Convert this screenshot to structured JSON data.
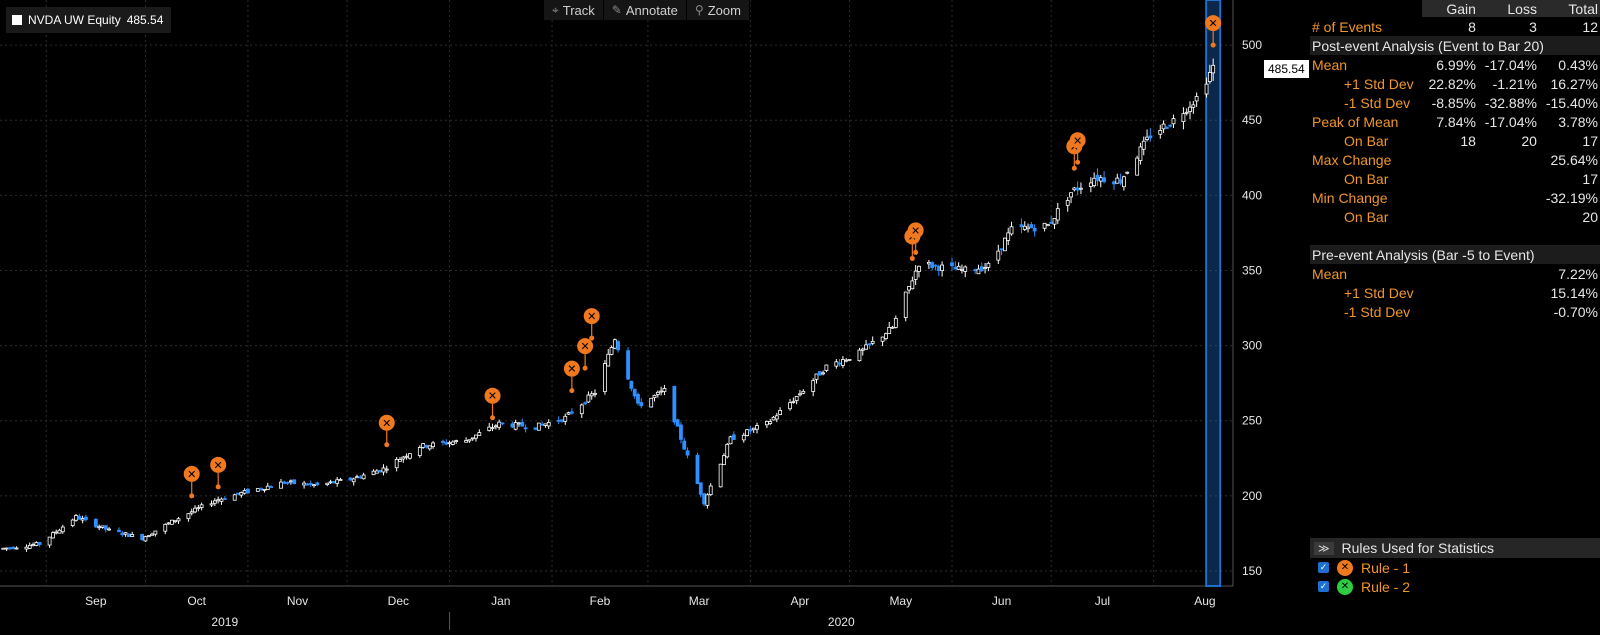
{
  "legend": {
    "label": "NVDA UW Equity",
    "value": "485.54"
  },
  "toolbar": {
    "track": "Track",
    "annotate": "Annotate",
    "zoom": "Zoom"
  },
  "last_price_tag": "485.54",
  "colors": {
    "up": "#ffffff",
    "down": "#2f8fff",
    "event": "#f0781e",
    "event_green": "#2ecc40",
    "grid": "#2c2c2c",
    "highlight": "#1f6fd1"
  },
  "chart_data": {
    "type": "candlestick",
    "y_ticks": [
      150,
      200,
      250,
      300,
      350,
      400,
      450,
      500
    ],
    "ylim": [
      140,
      530
    ],
    "x_month_labels": [
      "Sep",
      "Oct",
      "Nov",
      "Dec",
      "Jan",
      "Feb",
      "Mar",
      "Apr",
      "May",
      "Jun",
      "Jul",
      "Aug"
    ],
    "x_year_labels": [
      "2019",
      "2020"
    ],
    "anchors": [
      [
        "2019-08-19",
        165
      ],
      [
        "2019-08-30",
        168
      ],
      [
        "2019-09-10",
        186
      ],
      [
        "2019-09-20",
        177
      ],
      [
        "2019-09-30",
        172
      ],
      [
        "2019-10-10",
        184
      ],
      [
        "2019-10-22",
        197
      ],
      [
        "2019-11-01",
        203
      ],
      [
        "2019-11-12",
        209
      ],
      [
        "2019-11-22",
        207
      ],
      [
        "2019-12-02",
        211
      ],
      [
        "2019-12-12",
        218
      ],
      [
        "2019-12-23",
        233
      ],
      [
        "2020-01-06",
        237
      ],
      [
        "2020-01-16",
        248
      ],
      [
        "2020-01-27",
        246
      ],
      [
        "2020-02-05",
        252
      ],
      [
        "2020-02-14",
        269
      ],
      [
        "2020-02-20",
        305
      ],
      [
        "2020-02-27",
        260
      ],
      [
        "2020-03-06",
        270
      ],
      [
        "2020-03-12",
        232
      ],
      [
        "2020-03-18",
        196
      ],
      [
        "2020-03-26",
        238
      ],
      [
        "2020-04-06",
        248
      ],
      [
        "2020-04-15",
        266
      ],
      [
        "2020-04-24",
        286
      ],
      [
        "2020-05-04",
        295
      ],
      [
        "2020-05-14",
        312
      ],
      [
        "2020-05-22",
        355
      ],
      [
        "2020-05-29",
        352
      ],
      [
        "2020-06-05",
        350
      ],
      [
        "2020-06-12",
        353
      ],
      [
        "2020-06-19",
        377
      ],
      [
        "2020-06-30",
        380
      ],
      [
        "2020-07-07",
        402
      ],
      [
        "2020-07-14",
        412
      ],
      [
        "2020-07-22",
        410
      ],
      [
        "2020-07-31",
        440
      ],
      [
        "2020-08-07",
        450
      ],
      [
        "2020-08-14",
        465
      ],
      [
        "2020-08-19",
        485.54
      ]
    ],
    "events_rule1": [
      [
        "2019-10-15",
        200
      ],
      [
        "2019-10-23",
        206
      ],
      [
        "2019-12-13",
        234
      ],
      [
        "2020-01-14",
        252
      ],
      [
        "2020-02-07",
        270
      ],
      [
        "2020-02-11",
        285
      ],
      [
        "2020-02-13",
        305
      ],
      [
        "2020-05-20",
        358
      ],
      [
        "2020-05-21",
        362
      ],
      [
        "2020-07-08",
        418
      ],
      [
        "2020-07-09",
        422
      ],
      [
        "2020-08-19",
        500
      ]
    ],
    "highlight_date": "2020-08-19"
  },
  "stats": {
    "col_headers": [
      "Gain",
      "Loss",
      "Total"
    ],
    "events": {
      "label": "# of Events",
      "values": [
        "8",
        "3",
        "12"
      ]
    },
    "post_title": "Post-event Analysis (Event to Bar 20)",
    "post_rows": [
      {
        "label": "Mean",
        "indent": false,
        "values": [
          "6.99%",
          "-17.04%",
          "0.43%"
        ]
      },
      {
        "label": "+1 Std Dev",
        "indent": true,
        "values": [
          "22.82%",
          "-1.21%",
          "16.27%"
        ]
      },
      {
        "label": "-1 Std Dev",
        "indent": true,
        "values": [
          "-8.85%",
          "-32.88%",
          "-15.40%"
        ]
      },
      {
        "label": "Peak of Mean",
        "indent": false,
        "values": [
          "7.84%",
          "-17.04%",
          "3.78%"
        ]
      },
      {
        "label": "On Bar",
        "indent": true,
        "values": [
          "18",
          "20",
          "17"
        ]
      },
      {
        "label": "Max Change",
        "indent": false,
        "values": [
          "",
          "",
          "25.64%"
        ]
      },
      {
        "label": "On Bar",
        "indent": true,
        "values": [
          "",
          "",
          "17"
        ]
      },
      {
        "label": "Min Change",
        "indent": false,
        "values": [
          "",
          "",
          "-32.19%"
        ]
      },
      {
        "label": "On Bar",
        "indent": true,
        "values": [
          "",
          "",
          "20"
        ]
      }
    ],
    "pre_title": "Pre-event Analysis (Bar -5 to Event)",
    "pre_rows": [
      {
        "label": "Mean",
        "indent": false,
        "values": [
          "",
          "",
          "7.22%"
        ]
      },
      {
        "label": "+1 Std Dev",
        "indent": true,
        "values": [
          "",
          "",
          "15.14%"
        ]
      },
      {
        "label": "-1 Std Dev",
        "indent": true,
        "values": [
          "",
          "",
          "-0.70%"
        ]
      }
    ]
  },
  "rules": {
    "title": "Rules Used for Statistics",
    "items": [
      {
        "label": "Rule - 1",
        "icon": "orange-event-icon"
      },
      {
        "label": "Rule - 2",
        "icon": "green-event-icon"
      }
    ]
  }
}
